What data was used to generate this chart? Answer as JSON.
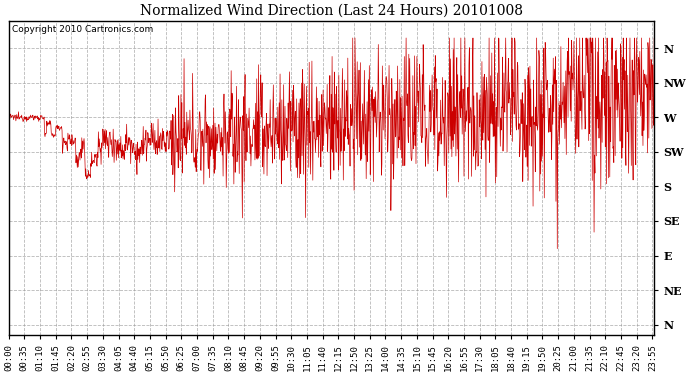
{
  "title": "Normalized Wind Direction (Last 24 Hours) 20101008",
  "copyright": "Copyright 2010 Cartronics.com",
  "line_color": "#cc0000",
  "bg_color": "#ffffff",
  "plot_bg_color": "#ffffff",
  "grid_color": "#999999",
  "ytick_labels": [
    "N",
    "NW",
    "W",
    "SW",
    "S",
    "SE",
    "E",
    "NE",
    "N"
  ],
  "ytick_values": [
    8,
    7,
    6,
    5,
    4,
    3,
    2,
    1,
    0
  ],
  "ylim": [
    -0.3,
    8.8
  ],
  "seed": 12345,
  "n_points": 1440,
  "tick_interval_min": 35,
  "figwidth": 6.9,
  "figheight": 3.75,
  "dpi": 100
}
